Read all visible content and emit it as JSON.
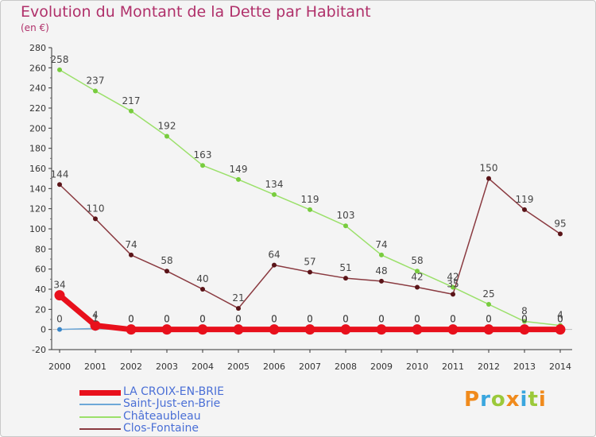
{
  "title": "Evolution du Montant de la Dette par Habitant",
  "subtitle": "(en €)",
  "logo": {
    "letters": [
      "P",
      "r",
      "o",
      "x",
      "i",
      "t",
      "i"
    ],
    "colors": [
      "#f08a1c",
      "#3aa6de",
      "#9bc93a",
      "#f08a1c",
      "#3aa6de",
      "#9bc93a",
      "#f08a1c"
    ]
  },
  "chart_data": {
    "type": "line",
    "title": "Evolution du Montant de la Dette par Habitant",
    "ylabel": "(en €)",
    "xlabel": "",
    "ylim": [
      -20,
      280
    ],
    "ytick_step": 20,
    "y_ticks": [
      "-20",
      "0",
      "20",
      "40",
      "60",
      "80",
      "100",
      "120",
      "140",
      "160",
      "180",
      "200",
      "220",
      "240",
      "260",
      "280"
    ],
    "categories": [
      "2000",
      "2001",
      "2002",
      "2003",
      "2004",
      "2005",
      "2006",
      "2007",
      "2008",
      "2009",
      "2010",
      "2011",
      "2012",
      "2013",
      "2014"
    ],
    "grid": false,
    "legend_position": "bottom-left",
    "series": [
      {
        "name": "LA CROIX-EN-BRIE",
        "color": "#e8101c",
        "marker": "#e8101c",
        "values": [
          34,
          4,
          0,
          0,
          0,
          0,
          0,
          0,
          0,
          0,
          0,
          0,
          0,
          0,
          0
        ],
        "labels": [
          "34",
          "4",
          "0",
          "0",
          "0",
          "0",
          "0",
          "0",
          "0",
          "0",
          "0",
          "0",
          "0",
          "0",
          "0"
        ]
      },
      {
        "name": "Saint-Just-en-Brie",
        "color": "#6ea8d8",
        "marker": "#3a86c8",
        "values": [
          0,
          1,
          0,
          0,
          0,
          0,
          0,
          0,
          0,
          0,
          0,
          0,
          0,
          0,
          0
        ],
        "labels": [
          "0",
          "1",
          "0",
          "0",
          "0",
          "0",
          "0",
          "0",
          "0",
          "0",
          "0",
          "0",
          "0",
          "0",
          "0"
        ]
      },
      {
        "name": "Châteaubleau",
        "color": "#9be06a",
        "marker": "#78cc3e",
        "values": [
          258,
          237,
          217,
          192,
          163,
          149,
          134,
          119,
          103,
          74,
          58,
          42,
          25,
          8,
          4
        ],
        "labels": [
          "258",
          "237",
          "217",
          "192",
          "163",
          "149",
          "134",
          "119",
          "103",
          "74",
          "58",
          "42",
          "25",
          "8",
          "4"
        ]
      },
      {
        "name": "Clos-Fontaine",
        "color": "#8a3a40",
        "marker": "#5a1418",
        "values": [
          144,
          110,
          74,
          58,
          40,
          21,
          64,
          57,
          51,
          48,
          42,
          35,
          150,
          119,
          95
        ],
        "labels": [
          "144",
          "110",
          "74",
          "58",
          "40",
          "21",
          "64",
          "57",
          "51",
          "48",
          "42",
          "35",
          "150",
          "119",
          "95"
        ]
      }
    ]
  }
}
